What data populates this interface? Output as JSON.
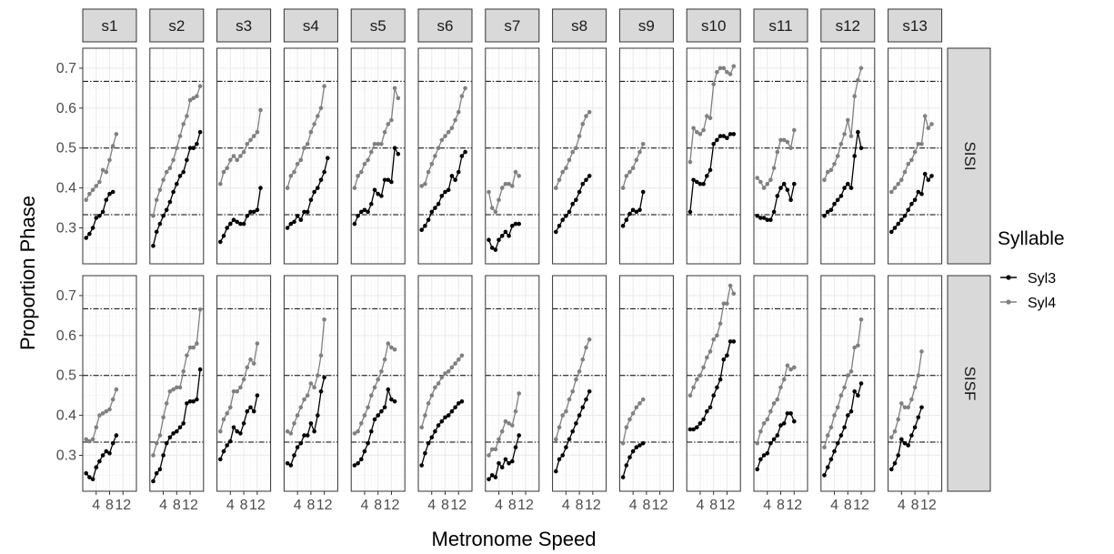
{
  "chart_data": {
    "type": "line",
    "title": "",
    "xlabel": "Metronome Speed",
    "ylabel": "Proportion Phase",
    "facet_columns": [
      "s1",
      "s2",
      "s3",
      "s4",
      "s5",
      "s6",
      "s7",
      "s8",
      "s9",
      "s10",
      "s11",
      "s12",
      "s13"
    ],
    "facet_rows": [
      "SISI",
      "SISF"
    ],
    "x_ticks": [
      4,
      8,
      12
    ],
    "y_ticks": [
      0.3,
      0.4,
      0.5,
      0.6,
      0.7
    ],
    "y_tick_labels": [
      "0.3",
      "0.4",
      "0.5",
      "0.6",
      "0.7"
    ],
    "xlim": [
      0,
      16
    ],
    "ylim": [
      0.21,
      0.75
    ],
    "reference_lines": [
      0.333,
      0.5,
      0.667
    ],
    "grid": true,
    "legend": {
      "title": "Syllable",
      "position": "right",
      "entries": [
        "Syl3",
        "Syl4"
      ]
    },
    "colors": {
      "Syl3": "#000000",
      "Syl4": "#808080",
      "strip": "#d9d9d9",
      "grid": "#ebebeb",
      "panel_border": "#333333"
    },
    "panels": [
      {
        "col": "s1",
        "row": "SISI",
        "syl3": [
          0.275,
          0.285,
          0.3,
          0.325,
          0.33,
          0.34,
          0.37,
          0.385,
          0.39
        ],
        "syl4": [
          0.37,
          0.385,
          0.395,
          0.405,
          0.415,
          0.445,
          0.44,
          0.47,
          0.505,
          0.535
        ]
      },
      {
        "col": "s2",
        "row": "SISI",
        "syl3": [
          0.255,
          0.29,
          0.31,
          0.33,
          0.345,
          0.365,
          0.39,
          0.41,
          0.43,
          0.44,
          0.47,
          0.5,
          0.5,
          0.51,
          0.54
        ],
        "syl4": [
          0.33,
          0.37,
          0.395,
          0.42,
          0.44,
          0.45,
          0.47,
          0.5,
          0.53,
          0.56,
          0.58,
          0.62,
          0.625,
          0.63,
          0.655
        ]
      },
      {
        "col": "s3",
        "row": "SISI",
        "syl3": [
          0.265,
          0.28,
          0.3,
          0.31,
          0.32,
          0.315,
          0.31,
          0.31,
          0.33,
          0.34,
          0.34,
          0.345,
          0.4
        ],
        "syl4": [
          0.41,
          0.44,
          0.45,
          0.47,
          0.48,
          0.47,
          0.48,
          0.49,
          0.51,
          0.52,
          0.53,
          0.54,
          0.595
        ]
      },
      {
        "col": "s4",
        "row": "SISI",
        "syl3": [
          0.3,
          0.31,
          0.315,
          0.33,
          0.32,
          0.34,
          0.34,
          0.37,
          0.39,
          0.4,
          0.42,
          0.44,
          0.475
        ],
        "syl4": [
          0.4,
          0.43,
          0.44,
          0.46,
          0.47,
          0.5,
          0.51,
          0.54,
          0.56,
          0.58,
          0.6,
          0.655
        ]
      },
      {
        "col": "s5",
        "row": "SISI",
        "syl3": [
          0.31,
          0.33,
          0.34,
          0.345,
          0.34,
          0.36,
          0.395,
          0.385,
          0.38,
          0.42,
          0.42,
          0.415,
          0.5,
          0.485
        ],
        "syl4": [
          0.4,
          0.43,
          0.44,
          0.46,
          0.47,
          0.49,
          0.51,
          0.51,
          0.51,
          0.54,
          0.56,
          0.57,
          0.65,
          0.625
        ]
      },
      {
        "col": "s6",
        "row": "SISI",
        "syl3": [
          0.295,
          0.305,
          0.32,
          0.34,
          0.35,
          0.36,
          0.38,
          0.39,
          0.395,
          0.43,
          0.42,
          0.44,
          0.48,
          0.49
        ],
        "syl4": [
          0.405,
          0.41,
          0.44,
          0.46,
          0.48,
          0.5,
          0.52,
          0.53,
          0.54,
          0.55,
          0.57,
          0.59,
          0.63,
          0.65
        ]
      },
      {
        "col": "s7",
        "row": "SISI",
        "syl3": [
          0.27,
          0.25,
          0.245,
          0.27,
          0.28,
          0.29,
          0.28,
          0.305,
          0.31,
          0.31
        ],
        "syl4": [
          0.39,
          0.35,
          0.34,
          0.37,
          0.4,
          0.41,
          0.41,
          0.405,
          0.44,
          0.43
        ]
      },
      {
        "col": "s8",
        "row": "SISI",
        "syl3": [
          0.29,
          0.305,
          0.32,
          0.33,
          0.34,
          0.36,
          0.37,
          0.39,
          0.41,
          0.42,
          0.43
        ],
        "syl4": [
          0.4,
          0.42,
          0.44,
          0.45,
          0.47,
          0.49,
          0.5,
          0.53,
          0.56,
          0.58,
          0.59
        ]
      },
      {
        "col": "s9",
        "row": "SISI",
        "syl3": [
          0.305,
          0.32,
          0.335,
          0.345,
          0.34,
          0.345,
          0.39
        ],
        "syl4": [
          0.4,
          0.43,
          0.44,
          0.45,
          0.47,
          0.49,
          0.51
        ]
      },
      {
        "col": "s10",
        "row": "SISI",
        "syl3": [
          0.34,
          0.42,
          0.415,
          0.41,
          0.41,
          0.43,
          0.445,
          0.51,
          0.52,
          0.53,
          0.53,
          0.525,
          0.535,
          0.535
        ],
        "syl4": [
          0.465,
          0.55,
          0.54,
          0.535,
          0.545,
          0.58,
          0.575,
          0.66,
          0.69,
          0.7,
          0.7,
          0.69,
          0.685,
          0.705
        ]
      },
      {
        "col": "s11",
        "row": "SISI",
        "syl3": [
          0.33,
          0.325,
          0.325,
          0.32,
          0.32,
          0.34,
          0.38,
          0.4,
          0.41,
          0.395,
          0.37,
          0.41
        ],
        "syl4": [
          0.425,
          0.415,
          0.4,
          0.41,
          0.42,
          0.45,
          0.49,
          0.52,
          0.52,
          0.515,
          0.5,
          0.545
        ]
      },
      {
        "col": "s12",
        "row": "SISI",
        "syl3": [
          0.33,
          0.34,
          0.345,
          0.36,
          0.37,
          0.38,
          0.4,
          0.41,
          0.4,
          0.48,
          0.54,
          0.5
        ],
        "syl4": [
          0.42,
          0.44,
          0.445,
          0.46,
          0.48,
          0.51,
          0.535,
          0.57,
          0.53,
          0.63,
          0.67,
          0.7
        ]
      },
      {
        "col": "s13",
        "row": "SISI",
        "syl3": [
          0.29,
          0.3,
          0.31,
          0.32,
          0.33,
          0.345,
          0.36,
          0.37,
          0.39,
          0.385,
          0.435,
          0.42,
          0.43
        ],
        "syl4": [
          0.39,
          0.4,
          0.41,
          0.42,
          0.44,
          0.46,
          0.47,
          0.49,
          0.51,
          0.51,
          0.58,
          0.55,
          0.56
        ]
      },
      {
        "col": "s1",
        "row": "SISF",
        "syl3": [
          0.255,
          0.245,
          0.24,
          0.27,
          0.285,
          0.3,
          0.31,
          0.305,
          0.33,
          0.35
        ],
        "syl4": [
          0.34,
          0.335,
          0.34,
          0.37,
          0.4,
          0.405,
          0.41,
          0.415,
          0.44,
          0.465
        ]
      },
      {
        "col": "s2",
        "row": "SISF",
        "syl3": [
          0.235,
          0.255,
          0.265,
          0.3,
          0.33,
          0.345,
          0.355,
          0.36,
          0.37,
          0.38,
          0.43,
          0.435,
          0.435,
          0.44,
          0.515
        ],
        "syl4": [
          0.3,
          0.33,
          0.35,
          0.395,
          0.43,
          0.46,
          0.465,
          0.47,
          0.47,
          0.51,
          0.55,
          0.57,
          0.57,
          0.58,
          0.665
        ]
      },
      {
        "col": "s3",
        "row": "SISF",
        "syl3": [
          0.29,
          0.31,
          0.325,
          0.335,
          0.37,
          0.36,
          0.355,
          0.38,
          0.41,
          0.42,
          0.41,
          0.45
        ],
        "syl4": [
          0.36,
          0.39,
          0.405,
          0.42,
          0.46,
          0.46,
          0.47,
          0.49,
          0.52,
          0.54,
          0.53,
          0.58
        ]
      },
      {
        "col": "s4",
        "row": "SISF",
        "syl3": [
          0.28,
          0.275,
          0.3,
          0.32,
          0.33,
          0.35,
          0.35,
          0.38,
          0.36,
          0.4,
          0.46,
          0.495
        ],
        "syl4": [
          0.36,
          0.355,
          0.38,
          0.4,
          0.42,
          0.44,
          0.45,
          0.48,
          0.47,
          0.5,
          0.55,
          0.64
        ]
      },
      {
        "col": "s5",
        "row": "SISF",
        "syl3": [
          0.275,
          0.28,
          0.29,
          0.31,
          0.33,
          0.36,
          0.39,
          0.4,
          0.41,
          0.42,
          0.465,
          0.44,
          0.435
        ],
        "syl4": [
          0.355,
          0.36,
          0.38,
          0.4,
          0.42,
          0.45,
          0.47,
          0.49,
          0.51,
          0.54,
          0.58,
          0.57,
          0.565
        ]
      },
      {
        "col": "s6",
        "row": "SISF",
        "syl3": [
          0.275,
          0.305,
          0.33,
          0.345,
          0.36,
          0.375,
          0.385,
          0.395,
          0.4,
          0.41,
          0.42,
          0.43,
          0.435
        ],
        "syl4": [
          0.37,
          0.4,
          0.43,
          0.45,
          0.47,
          0.48,
          0.495,
          0.505,
          0.51,
          0.52,
          0.53,
          0.54,
          0.55
        ]
      },
      {
        "col": "s7",
        "row": "SISF",
        "syl3": [
          0.24,
          0.25,
          0.245,
          0.28,
          0.27,
          0.29,
          0.28,
          0.285,
          0.32,
          0.35
        ],
        "syl4": [
          0.3,
          0.315,
          0.315,
          0.34,
          0.36,
          0.385,
          0.38,
          0.375,
          0.41,
          0.455
        ]
      },
      {
        "col": "s8",
        "row": "SISF",
        "syl3": [
          0.26,
          0.29,
          0.3,
          0.32,
          0.34,
          0.36,
          0.38,
          0.4,
          0.42,
          0.44,
          0.46
        ],
        "syl4": [
          0.34,
          0.37,
          0.4,
          0.41,
          0.44,
          0.46,
          0.49,
          0.51,
          0.54,
          0.57,
          0.59
        ]
      },
      {
        "col": "s9",
        "row": "SISF",
        "syl3": [
          0.245,
          0.275,
          0.295,
          0.31,
          0.32,
          0.325,
          0.33
        ],
        "syl4": [
          0.33,
          0.37,
          0.39,
          0.405,
          0.42,
          0.43,
          0.44
        ]
      },
      {
        "col": "s10",
        "row": "SISF",
        "syl3": [
          0.365,
          0.365,
          0.37,
          0.38,
          0.39,
          0.41,
          0.42,
          0.45,
          0.47,
          0.49,
          0.54,
          0.55,
          0.585,
          0.585
        ],
        "syl4": [
          0.45,
          0.47,
          0.49,
          0.5,
          0.52,
          0.545,
          0.56,
          0.59,
          0.6,
          0.63,
          0.68,
          0.68,
          0.725,
          0.705
        ]
      },
      {
        "col": "s11",
        "row": "SISF",
        "syl3": [
          0.265,
          0.29,
          0.3,
          0.305,
          0.33,
          0.34,
          0.35,
          0.375,
          0.38,
          0.405,
          0.405,
          0.385
        ],
        "syl4": [
          0.33,
          0.36,
          0.38,
          0.39,
          0.41,
          0.43,
          0.44,
          0.47,
          0.49,
          0.525,
          0.515,
          0.52
        ]
      },
      {
        "col": "s12",
        "row": "SISF",
        "syl3": [
          0.25,
          0.27,
          0.29,
          0.31,
          0.33,
          0.35,
          0.37,
          0.4,
          0.41,
          0.46,
          0.45,
          0.48
        ],
        "syl4": [
          0.32,
          0.35,
          0.37,
          0.4,
          0.42,
          0.45,
          0.47,
          0.5,
          0.51,
          0.57,
          0.575,
          0.64
        ]
      },
      {
        "col": "s13",
        "row": "SISF",
        "syl3": [
          0.265,
          0.28,
          0.3,
          0.34,
          0.33,
          0.325,
          0.35,
          0.37,
          0.395,
          0.42
        ],
        "syl4": [
          0.345,
          0.36,
          0.39,
          0.43,
          0.42,
          0.42,
          0.44,
          0.47,
          0.5,
          0.56
        ]
      }
    ]
  }
}
